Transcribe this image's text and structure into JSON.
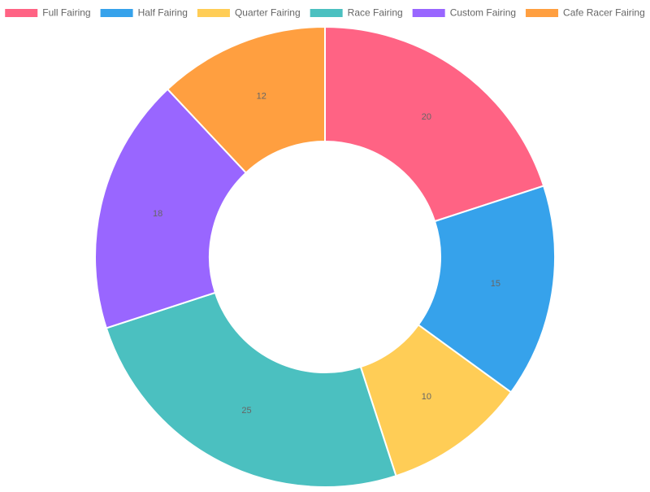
{
  "chart_data": {
    "type": "doughnut",
    "categories": [
      "Full Fairing",
      "Half Fairing",
      "Quarter Fairing",
      "Race Fairing",
      "Custom Fairing",
      "Cafe Racer Fairing"
    ],
    "values": [
      20,
      15,
      10,
      25,
      18,
      12
    ],
    "colors": [
      "#ff6384",
      "#36a2eb",
      "#ffcd56",
      "#4bc0c0",
      "#9966ff",
      "#ff9f40"
    ],
    "legend": "top"
  }
}
